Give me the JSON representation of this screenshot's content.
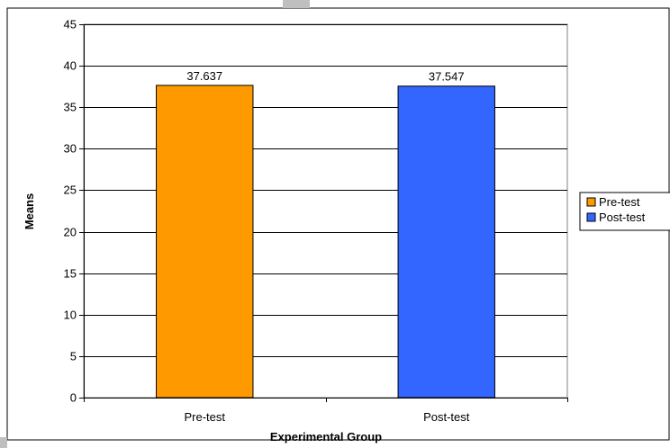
{
  "chart_data": {
    "type": "bar",
    "categories": [
      "Pre-test",
      "Post-test"
    ],
    "values": [
      37.637,
      37.547
    ],
    "data_labels": [
      "37.637",
      "37.547"
    ],
    "colors": [
      "#FF9900",
      "#3366FF"
    ],
    "xlabel": "Experimental Group",
    "ylabel": "Means",
    "ylim": [
      0,
      45
    ],
    "yticks": [
      "0",
      "5",
      "10",
      "15",
      "20",
      "25",
      "30",
      "35",
      "40",
      "45"
    ],
    "grid": true,
    "legend": {
      "placement": "right",
      "entries": [
        {
          "label": "Pre-test",
          "color": "#FF9900"
        },
        {
          "label": "Post-test",
          "color": "#3366FF"
        }
      ]
    }
  }
}
